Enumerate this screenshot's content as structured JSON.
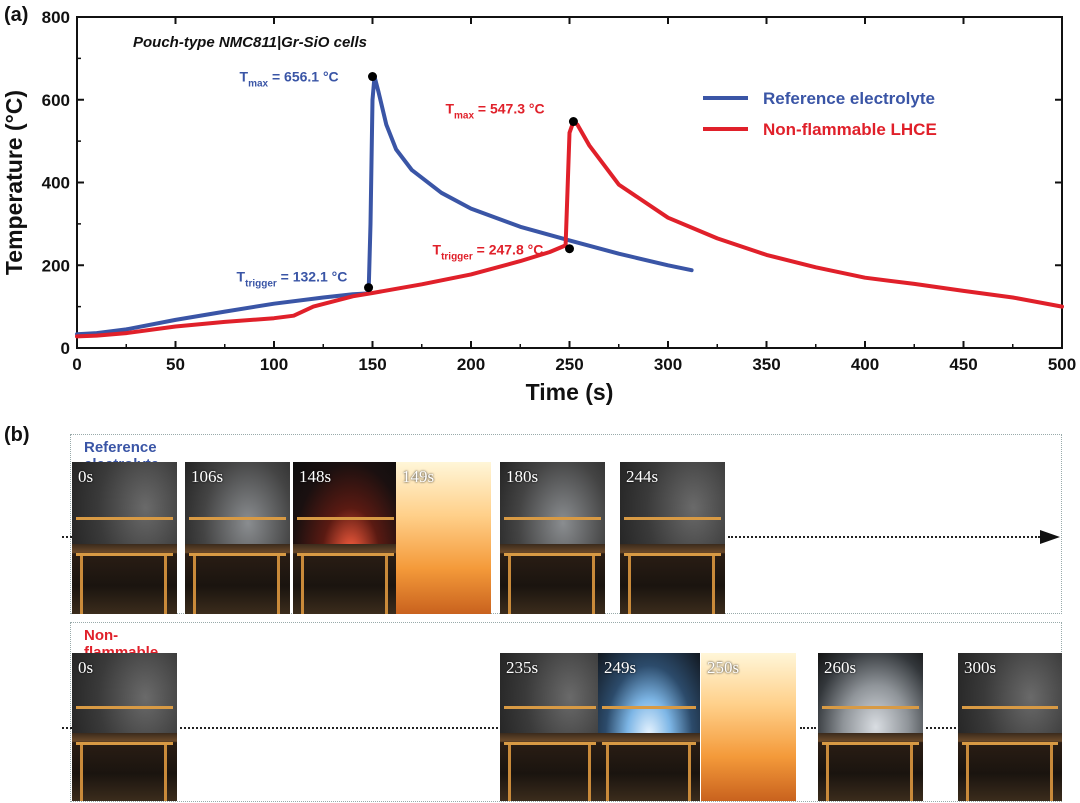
{
  "panel_a_label": "(a)",
  "panel_b_label": "(b)",
  "chart_data": {
    "type": "line",
    "title": "",
    "annotation_title": "Pouch-type NMC811|Gr-SiO cells",
    "xlabel": "Time (s)",
    "ylabel": "Temperature (°C)",
    "xlim": [
      0,
      500
    ],
    "ylim": [
      0,
      800
    ],
    "xticks": [
      0,
      50,
      100,
      150,
      200,
      250,
      300,
      350,
      400,
      450,
      500
    ],
    "yticks": [
      0,
      200,
      400,
      600,
      800
    ],
    "grid": false,
    "legend_position": "top-right",
    "series": [
      {
        "name": "Reference electrolyte",
        "color": "#3a55a6",
        "x": [
          0,
          10,
          25,
          50,
          75,
          100,
          125,
          140,
          148,
          149,
          150,
          151,
          153,
          157,
          162,
          170,
          185,
          200,
          225,
          250,
          275,
          300,
          312
        ],
        "y": [
          33,
          36,
          45,
          68,
          88,
          107,
          122,
          130,
          132,
          300,
          600,
          656,
          620,
          540,
          480,
          430,
          375,
          337,
          293,
          260,
          228,
          200,
          188
        ]
      },
      {
        "name": "Non-flammable LHCE",
        "color": "#e0202a",
        "x": [
          0,
          10,
          25,
          50,
          75,
          100,
          110,
          120,
          140,
          150,
          175,
          200,
          225,
          240,
          248,
          249,
          250,
          252,
          254,
          260,
          275,
          300,
          325,
          350,
          375,
          400,
          425,
          450,
          475,
          500
        ],
        "y": [
          28,
          30,
          36,
          52,
          63,
          72,
          78,
          100,
          125,
          133,
          154,
          178,
          210,
          232,
          248,
          380,
          520,
          547,
          540,
          490,
          395,
          315,
          265,
          225,
          195,
          170,
          155,
          138,
          122,
          100
        ]
      }
    ],
    "markers": [
      {
        "series": "Reference electrolyte",
        "x": 150,
        "y": 656.1
      },
      {
        "series": "Reference electrolyte",
        "x": 148,
        "y": 146
      },
      {
        "series": "Non-flammable LHCE",
        "x": 252,
        "y": 547.3
      },
      {
        "series": "Non-flammable LHCE",
        "x": 250,
        "y": 240
      }
    ],
    "annotations": [
      {
        "main": "T",
        "sub": "max",
        "value": " = 656.1 °C",
        "color": "#3a55a6",
        "anchor_x": 150,
        "anchor_y": 656
      },
      {
        "main": "T",
        "sub": "trigger",
        "value": " = 132.1 °C",
        "color": "#3a55a6",
        "anchor_x": 148,
        "anchor_y": 146
      },
      {
        "main": "T",
        "sub": "max",
        "value": " = 547.3 °C",
        "color": "#e0202a",
        "anchor_x": 252,
        "anchor_y": 547
      },
      {
        "main": "T",
        "sub": "trigger",
        "value": " = 247.8 °C",
        "color": "#e0202a",
        "anchor_x": 250,
        "anchor_y": 240
      }
    ]
  },
  "strips": [
    {
      "title": "Reference electrolyte",
      "title_color": "#3a55a6",
      "frames": [
        {
          "label": "0s",
          "kind": "dark"
        },
        {
          "label": "106s",
          "kind": "smoke"
        },
        {
          "label": "148s",
          "kind": "sparks"
        },
        {
          "label": "149s",
          "kind": "fire"
        },
        {
          "label": "180s",
          "kind": "smoke"
        },
        {
          "label": "244s",
          "kind": "dark"
        }
      ]
    },
    {
      "title": "Non-flammable LHCE",
      "title_color": "#e0202a",
      "frames": [
        {
          "label": "0s",
          "kind": "dark"
        },
        {
          "label": "235s",
          "kind": "dark"
        },
        {
          "label": "249s",
          "kind": "bluesmoke"
        },
        {
          "label": "250s",
          "kind": "fire"
        },
        {
          "label": "260s",
          "kind": "whitesmoke"
        },
        {
          "label": "300s",
          "kind": "dark"
        }
      ]
    }
  ]
}
